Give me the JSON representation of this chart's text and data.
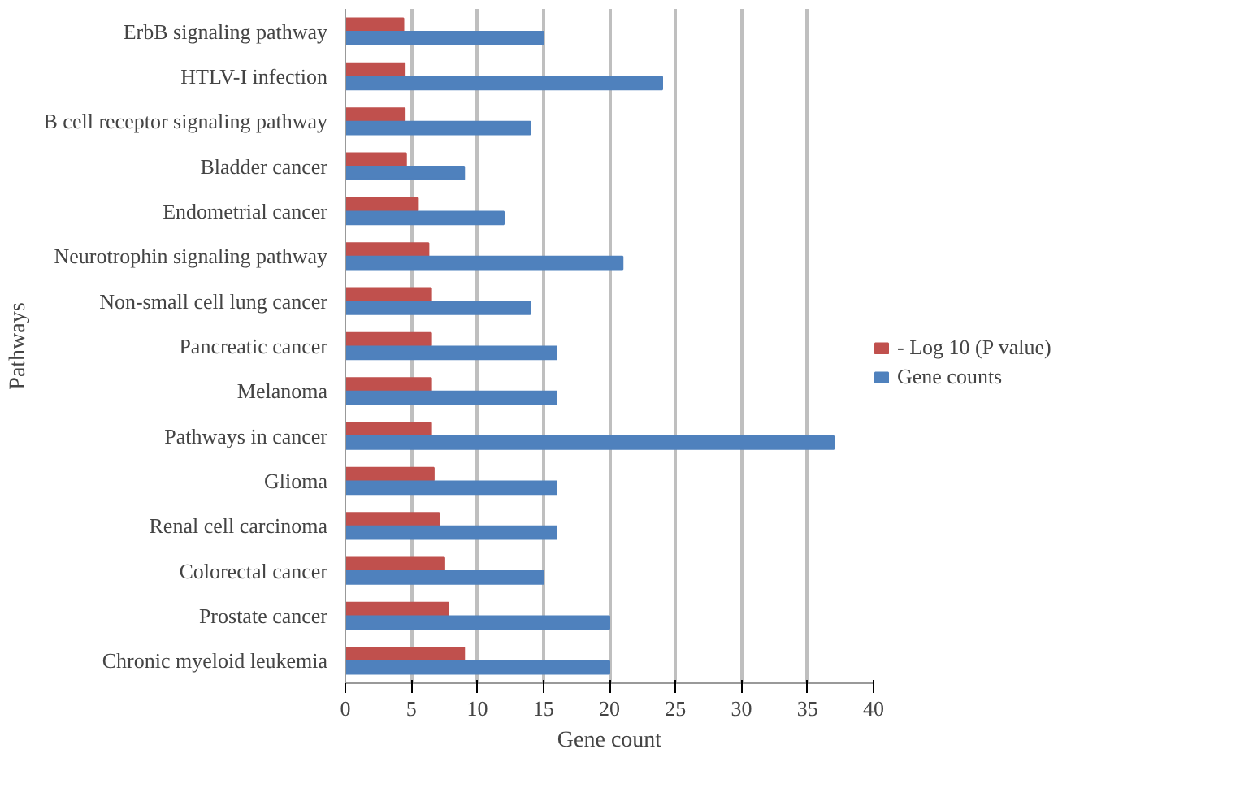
{
  "chart_data": {
    "type": "bar",
    "orientation": "horizontal",
    "xlabel": "Gene count",
    "ylabel": "Pathways",
    "categories": [
      "ErbB signaling pathway",
      "HTLV-I infection",
      "B cell receptor signaling pathway",
      "Bladder cancer",
      "Endometrial cancer",
      "Neurotrophin signaling pathway",
      "Non-small cell lung cancer",
      "Pancreatic cancer",
      "Melanoma",
      "Pathways in cancer",
      "Glioma",
      "Renal cell carcinoma",
      "Colorectal cancer",
      "Prostate cancer",
      "Chronic myeloid leukemia"
    ],
    "series": [
      {
        "name": "- Log 10 (P value)",
        "color": "#c0504d",
        "values": [
          4.4,
          4.5,
          4.5,
          4.6,
          5.5,
          6.3,
          6.5,
          6.5,
          6.5,
          6.5,
          6.7,
          7.1,
          7.5,
          7.8,
          9.0
        ]
      },
      {
        "name": "Gene counts",
        "color": "#4f81bd",
        "values": [
          15,
          24,
          14,
          9,
          12,
          21,
          14,
          16,
          16,
          37,
          16,
          16,
          15,
          20,
          20
        ]
      }
    ],
    "xlim": [
      0,
      40
    ],
    "xticks": [
      0,
      5,
      10,
      15,
      20,
      25,
      30,
      35,
      40
    ],
    "grid": "x",
    "legend": "right"
  }
}
